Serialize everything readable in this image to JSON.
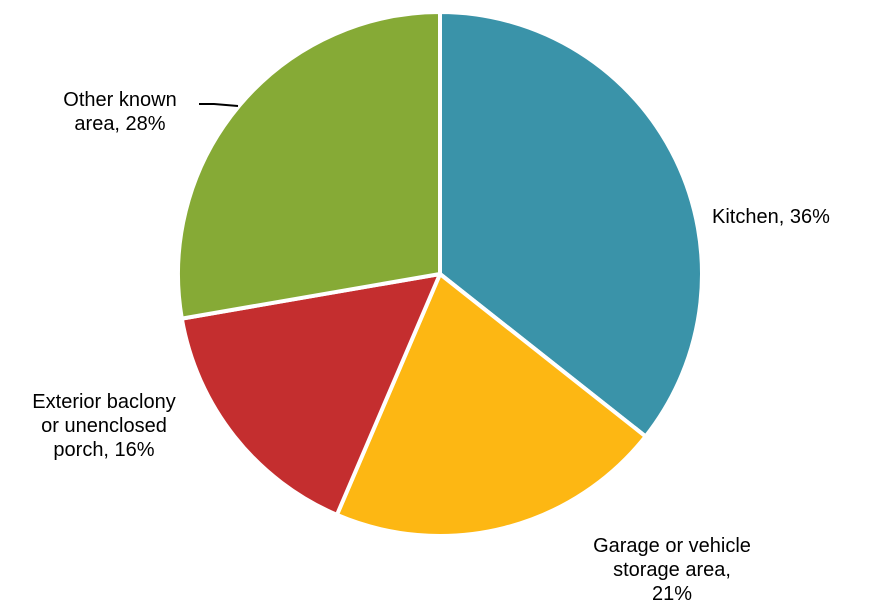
{
  "chart_data": {
    "type": "pie",
    "slices": [
      {
        "label": "Kitchen, 36%",
        "value": 36,
        "color": "#3A93A9"
      },
      {
        "label": "Garage or vehicle storage area, 21%",
        "value": 21,
        "color": "#FDB713"
      },
      {
        "label": "Exterior baclony or unenclosed porch, 16%",
        "value": 16,
        "color": "#C42E2F"
      },
      {
        "label": "Other known area, 28%",
        "value": 28,
        "color": "#86AA36"
      }
    ],
    "label_lines": [
      [
        "Kitchen, 36%"
      ],
      [
        "Garage or vehicle",
        "storage area,",
        "21%"
      ],
      [
        "Exterior baclony",
        "or unenclosed",
        "porch, 16%"
      ],
      [
        "Other known",
        "area, 28%"
      ]
    ]
  }
}
